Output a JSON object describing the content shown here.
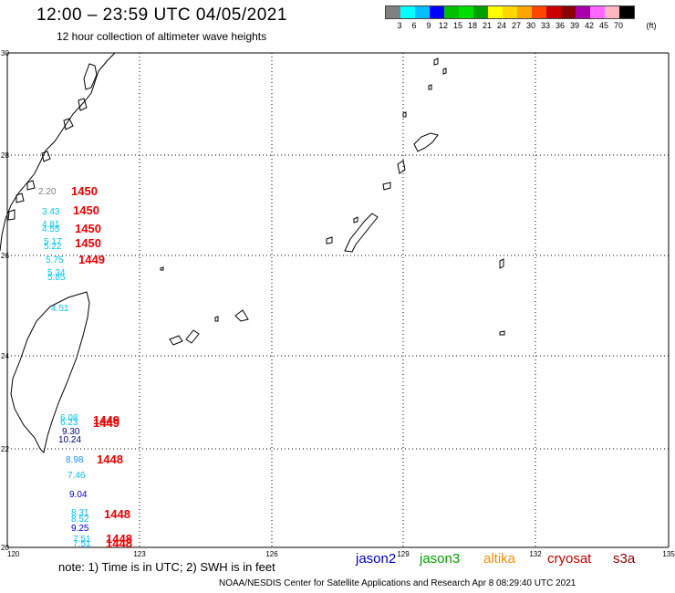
{
  "header": {
    "title": "12:00 – 23:59 UTC 04/05/2021",
    "subtitle": "12 hour collection of altimeter wave heights"
  },
  "legend": {
    "colors": [
      "#808080",
      "#00ffff",
      "#00bfff",
      "#0000ff",
      "#00c000",
      "#00e000",
      "#00a000",
      "#ffff00",
      "#ffd700",
      "#ffa500",
      "#ff4500",
      "#cc0000",
      "#8b0000",
      "#aa00aa",
      "#ff66ff",
      "#ffb6c1",
      "#000000"
    ],
    "labels": [
      "3",
      "6",
      "9",
      "12",
      "15",
      "18",
      "21",
      "24",
      "27",
      "30",
      "33",
      "36",
      "39",
      "42",
      "45",
      "70"
    ],
    "unit": "(ft)"
  },
  "map": {
    "lat_labels": [
      "30",
      "28",
      "26",
      "24",
      "22",
      "20"
    ],
    "lon_labels": [
      "120",
      "123",
      "126",
      "129",
      "132",
      "135"
    ],
    "observations": [
      {
        "text": "2.20",
        "color": "#808080"
      },
      {
        "text": "1450",
        "color": "#ee0000"
      },
      {
        "text": "3.43",
        "color": "#00c8e6"
      },
      {
        "text": "1450",
        "color": "#ee0000"
      },
      {
        "text": "4.81",
        "color": "#00c8e6"
      },
      {
        "text": "4.55",
        "color": "#00c8e6"
      },
      {
        "text": "1450",
        "color": "#ee0000"
      },
      {
        "text": "5.17",
        "color": "#00c8e6"
      },
      {
        "text": "5.22",
        "color": "#00c8e6"
      },
      {
        "text": "1450",
        "color": "#ee0000"
      },
      {
        "text": "5.75",
        "color": "#00c8e6"
      },
      {
        "text": "1449",
        "color": "#ee0000"
      },
      {
        "text": "5.34",
        "color": "#00c8e6"
      },
      {
        "text": "5.85",
        "color": "#00c8e6"
      },
      {
        "text": "4.51",
        "color": "#00c8e6"
      },
      {
        "text": "6.08",
        "color": "#00c8e6"
      },
      {
        "text": "6.23",
        "color": "#00c8e6"
      },
      {
        "text": "1449",
        "color": "#ee0000"
      },
      {
        "text": "1449",
        "color": "#ee0000"
      },
      {
        "text": "9.30",
        "color": "#000080"
      },
      {
        "text": "10.24",
        "color": "#000080"
      },
      {
        "text": "8.98",
        "color": "#1e90ff"
      },
      {
        "text": "1448",
        "color": "#ee0000"
      },
      {
        "text": "7.46",
        "color": "#00bfff"
      },
      {
        "text": "9.04",
        "color": "#0000cd"
      },
      {
        "text": "8.31",
        "color": "#00bfff"
      },
      {
        "text": "8.52",
        "color": "#00bfff"
      },
      {
        "text": "1448",
        "color": "#ee0000"
      },
      {
        "text": "9.25",
        "color": "#0000cd"
      },
      {
        "text": "7.51",
        "color": "#00bfff"
      },
      {
        "text": "7.51",
        "color": "#00bfff"
      },
      {
        "text": "1448",
        "color": "#ee0000"
      },
      {
        "text": "1448",
        "color": "#ee0000"
      }
    ]
  },
  "note": "note:  1) Time is in UTC;  2) SWH is in feet",
  "satellites": [
    {
      "name": "jason2",
      "color": "#0000cc"
    },
    {
      "name": "jason3",
      "color": "#00a000"
    },
    {
      "name": "altika",
      "color": "#ff8c00"
    },
    {
      "name": "cryosat",
      "color": "#cc0000"
    },
    {
      "name": "s3a",
      "color": "#8b0000"
    }
  ],
  "footer": "NOAA/NESDIS Center for Satellite Applications and Research    Apr  8 08:29:40 UTC 2021"
}
